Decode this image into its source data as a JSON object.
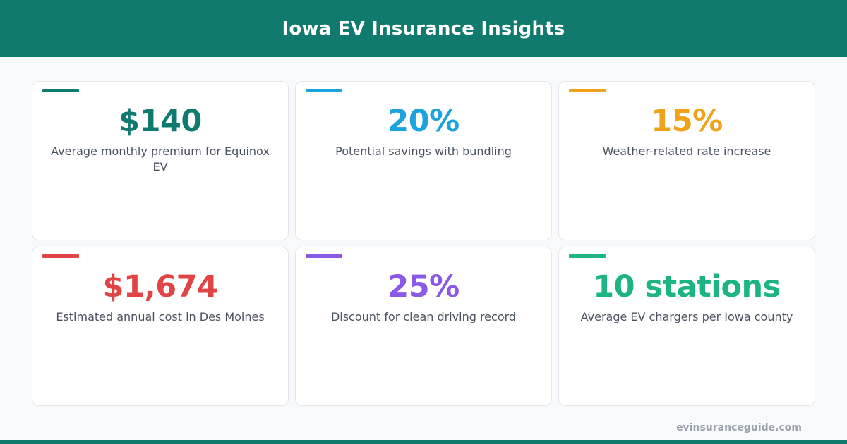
{
  "header": {
    "title": "Iowa EV Insurance Insights"
  },
  "cards": [
    {
      "value": "$140",
      "label": "Average monthly premium for Equinox EV",
      "color": "#117a6e"
    },
    {
      "value": "20%",
      "label": "Potential savings with bundling",
      "color": "#1aa3dc"
    },
    {
      "value": "15%",
      "label": "Weather-related rate increase",
      "color": "#f0a21a"
    },
    {
      "value": "$1,674",
      "label": "Estimated annual cost in Des Moines",
      "color": "#e04444"
    },
    {
      "value": "25%",
      "label": "Discount for clean driving record",
      "color": "#8a5ae6"
    },
    {
      "value": "10 stations",
      "label": "Average EV chargers per Iowa county",
      "color": "#1db483"
    }
  ],
  "footer": {
    "site": "evinsuranceguide.com"
  },
  "colors": {
    "brand": "#117a6e",
    "background": "#f7f9fb",
    "label_text": "#4a5260",
    "footer_text": "#9aa2ad"
  }
}
